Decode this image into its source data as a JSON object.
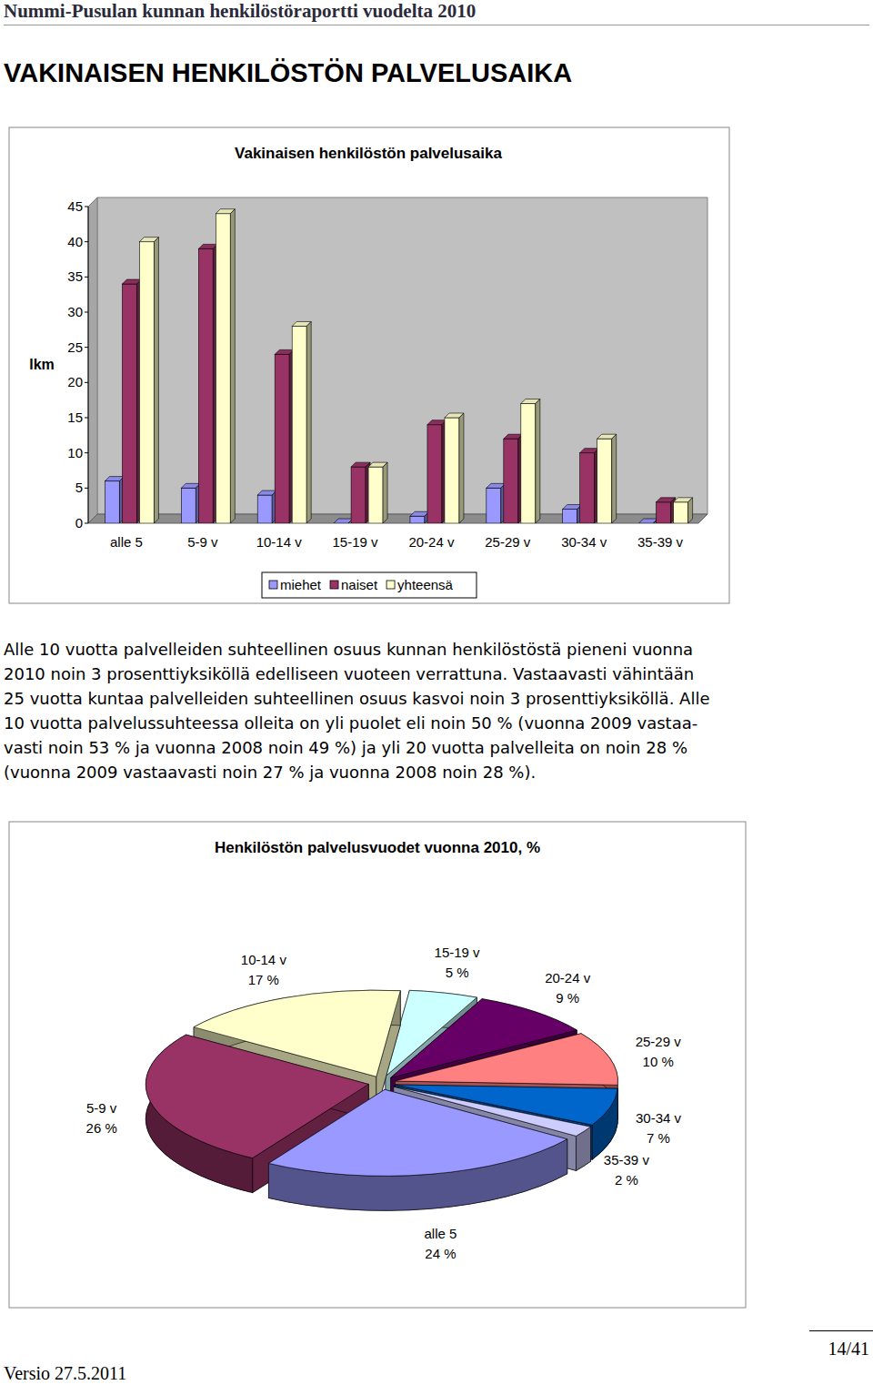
{
  "header": {
    "title": "Nummi-Pusulan kunnan henkilöstöraportti vuodelta 2010"
  },
  "heading": "VAKINAISEN HENKILÖSTÖN PALVELUSAIKA",
  "chart_data": [
    {
      "type": "bar",
      "title": "Vakinaisen henkilöstön palvelusaika",
      "y_label": "lkm",
      "categories": [
        "alle 5",
        "5-9 v",
        "10-14 v",
        "15-19 v",
        "20-24 v",
        "25-29 v",
        "30-34 v",
        "35-39 v"
      ],
      "series": [
        {
          "name": "miehet",
          "color": "#9999ff",
          "values": [
            6,
            5,
            4,
            0,
            1,
            5,
            2,
            0
          ]
        },
        {
          "name": "naiset",
          "color": "#993366",
          "values": [
            34,
            39,
            24,
            8,
            14,
            12,
            10,
            3
          ]
        },
        {
          "name": "yhteensä",
          "color": "#ffffcc",
          "values": [
            40,
            44,
            28,
            8,
            15,
            17,
            12,
            3
          ]
        }
      ],
      "ylim": [
        0,
        45
      ],
      "yticks": [
        0,
        5,
        10,
        15,
        20,
        25,
        30,
        35,
        40,
        45
      ],
      "grid": false,
      "legend": "bottom"
    },
    {
      "type": "pie",
      "title": "Henkilöstön palvelusvuodet vuonna 2010, %",
      "categories": [
        "alle 5",
        "5-9 v",
        "10-14 v",
        "15-19 v",
        "20-24 v",
        "25-29 v",
        "30-34 v",
        "35-39 v"
      ],
      "values": [
        24,
        26,
        17,
        5,
        9,
        10,
        7,
        2
      ],
      "value_labels": [
        "24 %",
        "26 %",
        "17 %",
        "5 %",
        "9 %",
        "10 %",
        "7 %",
        "2 %"
      ],
      "colors": [
        "#9999ff",
        "#993366",
        "#ffffcc",
        "#ccffff",
        "#660066",
        "#ff8080",
        "#0066cc",
        "#ccccff"
      ],
      "data_labels": true
    }
  ],
  "paragraph": [
    "Alle 10 vuotta palvelleiden suhteellinen osuus kunnan henkilöstöstä pieneni vuonna",
    "2010 noin 3 prosenttiyksiköllä edelliseen vuoteen verrattuna. Vastaavasti vähintään",
    "25 vuotta kuntaa palvelleiden suhteellinen osuus kasvoi noin 3 prosenttiyksiköllä. Alle",
    "10 vuotta palvelussuhteessa olleita on yli puolet eli noin 50 % (vuonna 2009 vastaa-",
    "vasti noin 53 % ja vuonna 2008 noin 49 %) ja yli 20 vuotta palvelleita on noin 28 %",
    "(vuonna 2009 vastaavasti noin 27 % ja vuonna 2008 noin 28 %)."
  ],
  "footer": {
    "version": "Versio 27.5.2011",
    "page": "14/41"
  }
}
